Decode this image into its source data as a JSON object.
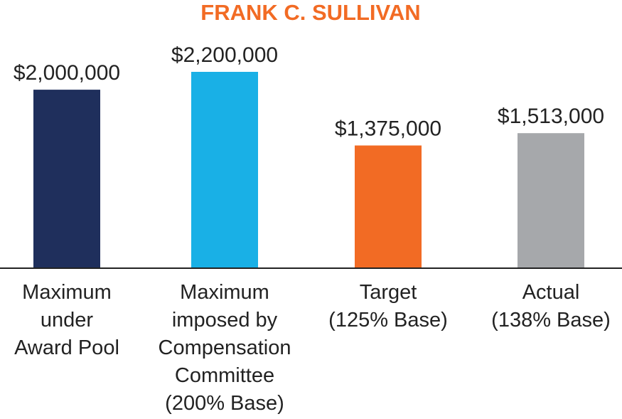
{
  "chart_data": {
    "type": "bar",
    "title": "FRANK C. SULLIVAN",
    "categories": [
      [
        "Maximum",
        "under",
        "Award Pool"
      ],
      [
        "Maximum",
        "imposed by",
        "Compensation",
        "Committee",
        "(200% Base)"
      ],
      [
        "Target",
        "(125% Base)"
      ],
      [
        "Actual",
        "(138% Base)"
      ]
    ],
    "values": [
      2000000,
      2200000,
      1375000,
      1513000
    ],
    "value_labels": [
      "$2,000,000",
      "$2,200,000",
      "$1,375,000",
      "$1,513,000"
    ],
    "bar_colors": [
      "#1f2f5c",
      "#19b0e6",
      "#f26b24",
      "#a6a8ab"
    ],
    "title_color": "#f26b24",
    "ylim": [
      0,
      2200000
    ],
    "grid": false,
    "xlabel": "",
    "ylabel": ""
  }
}
